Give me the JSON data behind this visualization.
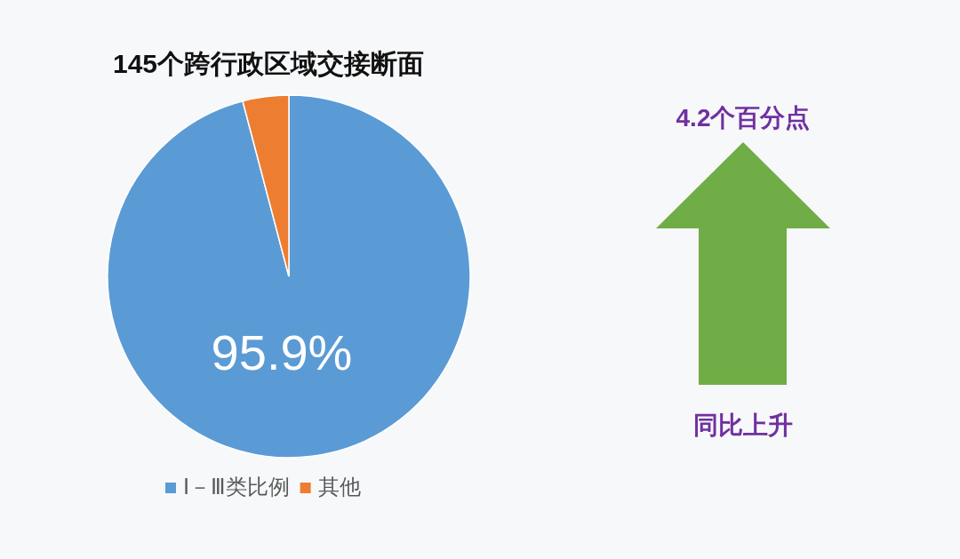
{
  "chart_data": {
    "type": "pie",
    "title": "145个跨行政区域交接断面",
    "categories": [
      "Ⅰ－Ⅲ类比例",
      "其他"
    ],
    "values": [
      95.9,
      4.1
    ],
    "colors": [
      "#5b9bd5",
      "#ed7d31"
    ],
    "value_labels": [
      "95.9%",
      null
    ],
    "legend": "bottom",
    "annotations": [
      "4.2个百分点",
      "同比上升"
    ]
  }
}
